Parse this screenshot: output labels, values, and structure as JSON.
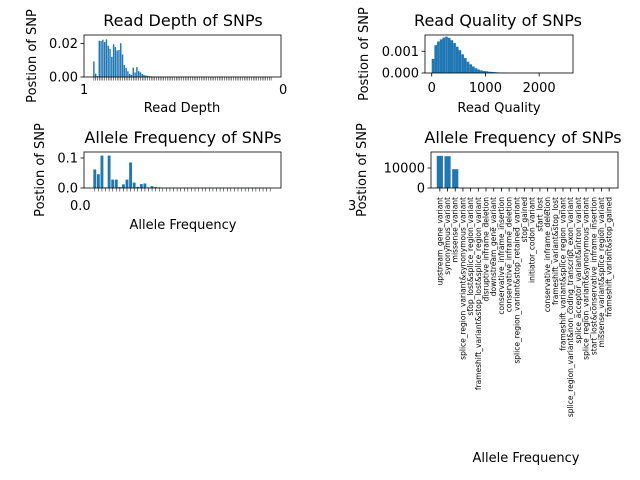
{
  "colors": {
    "bar": "#1f77b4",
    "axis": "#000000",
    "background": "#ffffff"
  },
  "chart_data": [
    {
      "type": "bar",
      "title": "Read Depth of SNPs",
      "xlabel": "Read Depth",
      "ylabel": "Postion of SNP",
      "ylim": [
        0,
        0.025
      ],
      "yticks": [
        "0.00",
        "0.02"
      ],
      "x_tick_text": "1",
      "x_tick_text_end": "0",
      "values": [
        0.0093,
        0.002,
        0.0005,
        0.0216,
        0.0214,
        0.0222,
        0.0208,
        0.0224,
        0.0186,
        0.0168,
        0.012,
        0.0195,
        0.0178,
        0.0158,
        0.0161,
        0.0201,
        0.0134,
        0.0071,
        0.0054,
        0.0034,
        0.0019,
        0.0012,
        0.0056,
        0.0027,
        0.0059,
        0.0035,
        0.0028,
        0.0018,
        0.0013,
        0.0009,
        0.0007,
        0.0005,
        0.0004,
        0.0003,
        0.0003,
        0.0002,
        0.0002,
        0.0002,
        0.0001,
        0.0001,
        0.0001,
        0.0001,
        0.0001,
        0.0001,
        0.0001,
        0.0001,
        0.0001,
        0.0001,
        0.0001,
        0.0001,
        0.0001,
        0.0001,
        0.0001,
        0.0001,
        0.0001,
        0.0001,
        0.0001,
        0.0001,
        0.0001,
        0.0001,
        0.0001,
        0.0001,
        0.0001,
        0.0001,
        0.0001,
        0.0001,
        0.0001,
        0.0001,
        0.0001,
        0.0001,
        0.0001,
        0.0001,
        0.0001,
        0.0001,
        0.0001,
        0.0001,
        0.0001,
        0.0001,
        0.0001,
        0.0001,
        0.0001,
        0.0001,
        0.0001,
        0.0001,
        0.0001,
        0.0001,
        0.0001,
        0.0001,
        0.0001,
        0.0001,
        0.0001,
        0.0001,
        0.0001,
        0.0001,
        0.0001,
        0.0001,
        0.0001,
        0.0001,
        0.0001,
        0.0001
      ]
    },
    {
      "type": "bar",
      "title": "Read Quality of SNPs",
      "xlabel": "Read Quality",
      "ylabel": "Postion of SNP",
      "xlim": [
        -125,
        2630
      ],
      "ylim": [
        0,
        0.00175
      ],
      "xticks": [
        0,
        1000,
        2000
      ],
      "yticks": [
        0,
        0.001
      ],
      "ytick_labels": [
        "0.000",
        "0.001"
      ],
      "bin_width": 50,
      "x": [
        0,
        50,
        100,
        150,
        200,
        250,
        300,
        350,
        400,
        450,
        500,
        550,
        600,
        650,
        700,
        750,
        800,
        850,
        900,
        950,
        1000,
        1050,
        1100,
        1150,
        1200,
        1250,
        1300,
        1350,
        1400,
        1450,
        1500,
        1550,
        1600,
        1650,
        1700,
        1750,
        1800,
        1850,
        1900,
        1950,
        2000,
        2050,
        2100,
        2150,
        2200,
        2250,
        2300,
        2350,
        2400,
        2450,
        2500
      ],
      "values": [
        0.00065,
        0.00128,
        0.00145,
        0.00155,
        0.00163,
        0.00167,
        0.00162,
        0.00151,
        0.00138,
        0.00121,
        0.00105,
        0.00086,
        0.00069,
        0.00052,
        0.0004,
        0.0003,
        0.00022,
        0.00016,
        0.00012,
        9e-05,
        8e-05,
        6e-05,
        5e-05,
        4e-05,
        3e-05,
        2e-05,
        2e-05,
        2e-05,
        1e-05,
        1e-05,
        1e-05,
        1e-05,
        1e-05,
        1e-05,
        1e-05,
        1e-05,
        1e-05,
        1e-05,
        1e-05,
        2e-05,
        1e-05,
        1e-05,
        1e-05,
        1e-05,
        1e-05,
        1e-05,
        1e-05,
        1e-05,
        1e-05,
        1e-05,
        1e-05
      ]
    },
    {
      "type": "bar",
      "title": "Allele Frequency of SNPs",
      "xlabel": "Allele Frequency",
      "ylabel": "Postion of SNP",
      "ylim": [
        0,
        0.12
      ],
      "yticks": [
        0,
        0.1
      ],
      "ytick_labels": [
        "0.0",
        "0.1"
      ],
      "x_tick_text": "0.0",
      "x_tick_text_end": "3",
      "values": [
        0.062,
        0.046,
        0.108,
        0.002,
        0.108,
        0.028,
        0.028,
        0.003,
        0.012,
        0.028,
        0.085,
        0.018,
        0.004,
        0.013,
        0.015,
        0.002,
        0.006,
        0.003,
        0.002,
        0.001,
        0.001,
        0.001,
        0.001,
        0.001,
        0.001,
        0.001,
        0.001,
        0.001,
        0.001,
        0.001,
        0.001,
        0.001,
        0.001,
        0.001,
        0.001,
        0.001,
        0.001,
        0.001,
        0.001,
        0.001,
        0.001,
        0.001,
        0.001,
        0.001,
        0.001,
        0.001,
        0.001,
        0.001,
        0.001,
        0.001
      ]
    },
    {
      "type": "bar",
      "title": "Allele Frequency of SNPs",
      "xlabel": "Allele Frequency",
      "ylabel": "Postion of SNP",
      "ylim": [
        0,
        18000
      ],
      "yticks": [
        0,
        10000
      ],
      "ytick_labels": [
        "0",
        "10000"
      ],
      "categories": [
        "upstream_gene_variant",
        "synonymous_variant",
        "missense_variant",
        "splice_region_variant&synonymous_variant",
        "stop_lost&splice_region_variant",
        "frameshift_variant&stop_lost&splice_region_variant",
        "disruptive_inframe_deletion",
        "downstream_gene_variant",
        "conservative_inframe_insertion",
        "conservative_inframe_deletion",
        "splice_region_variant&stop_retained_variant",
        "stop_gained",
        "initiator_codon_variant",
        "start_lost",
        "conservative_inframe_deletion",
        "frameshift_variant&stop_lost",
        "frameshift_variant&splice_region_variant",
        "splice_region_variant&non_coding_transcript_exon_variant",
        "splice_acceptor_variant&intron_variant",
        "splice_region_variant&synonymous_variant",
        "start_lost&conservative_inframe_insertion",
        "missense_variant&splice_region_variant",
        "frameshift_variant&stop_gained"
      ],
      "values": [
        16100,
        15900,
        9400,
        40,
        20,
        10,
        160,
        30,
        40,
        40,
        20,
        20,
        10,
        10,
        20,
        10,
        10,
        10,
        10,
        10,
        10,
        10,
        60
      ]
    }
  ]
}
